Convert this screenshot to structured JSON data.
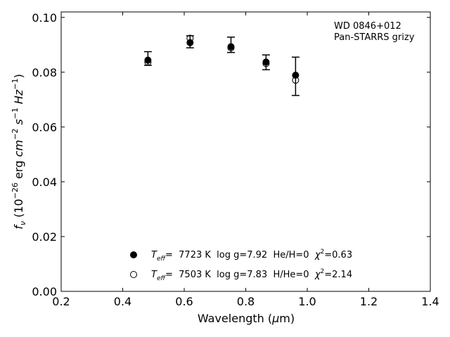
{
  "chart_data": {
    "type": "scatter",
    "title": "",
    "xlabel": "Wavelength (μm)",
    "ylabel": "f_ν (10^-26 erg cm^-2 s^-1 Hz^-1)",
    "xlim": [
      0.2,
      1.4
    ],
    "ylim": [
      0.0,
      0.102
    ],
    "xticks": [
      0.2,
      0.4,
      0.6,
      0.8,
      1.0,
      1.2,
      1.4
    ],
    "xtick_labels": [
      "0.2",
      "0.4",
      "0.6",
      "0.8",
      "1.0",
      "1.2",
      "1.4"
    ],
    "yticks": [
      0.0,
      0.02,
      0.04,
      0.06,
      0.08,
      0.1
    ],
    "ytick_labels": [
      "0.00",
      "0.02",
      "0.04",
      "0.06",
      "0.08",
      "0.10"
    ],
    "grid": false,
    "annotations": [
      "WD 0846+012",
      "Pan-STARRS grizy"
    ],
    "observed": {
      "x": [
        0.482,
        0.619,
        0.752,
        0.866,
        0.962
      ],
      "y": [
        0.085,
        0.0911,
        0.09,
        0.0836,
        0.0785
      ],
      "yerr": [
        0.0025,
        0.0022,
        0.0028,
        0.0027,
        0.007
      ]
    },
    "series": [
      {
        "marker": "filled-circle",
        "x": [
          0.482,
          0.619,
          0.752,
          0.866,
          0.962
        ],
        "y": [
          0.0844,
          0.0908,
          0.0893,
          0.0837,
          0.0789
        ],
        "label": {
          "teff_symbol": "T",
          "teff_sub": "eff",
          "rest": "=  7723 K  log g=7.92  He/H=0  ",
          "chi_symbol": "χ",
          "chi_sup": "2",
          "chi_rest": "=0.63"
        }
      },
      {
        "marker": "open-circle",
        "x": [
          0.482,
          0.619,
          0.752,
          0.866,
          0.962
        ],
        "y": [
          0.0837,
          0.0924,
          0.0889,
          0.0832,
          0.0771
        ],
        "label": {
          "teff_symbol": "T",
          "teff_sub": "eff",
          "rest": "=  7503 K  log g=7.83  H/He=0  ",
          "chi_symbol": "χ",
          "chi_sup": "2",
          "chi_rest": "=2.14"
        }
      }
    ]
  }
}
